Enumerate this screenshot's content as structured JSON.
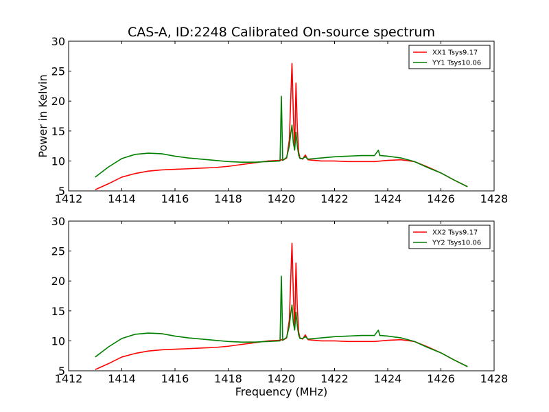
{
  "figure": {
    "title": "CAS-A, ID:2248 Calibrated On-source spectrum",
    "xlabel": "Frequency (MHz)",
    "ylabel": "Power in Kelvin"
  },
  "chart_data": [
    {
      "type": "line",
      "title": "CAS-A, ID:2248 Calibrated On-source spectrum",
      "xlabel": "",
      "ylabel": "Power in Kelvin",
      "xlim": [
        1412,
        1428
      ],
      "ylim": [
        5,
        30
      ],
      "xticks": [
        1412,
        1414,
        1416,
        1418,
        1420,
        1422,
        1424,
        1426,
        1428
      ],
      "yticks": [
        5,
        10,
        15,
        20,
        25,
        30
      ],
      "grid": false,
      "legend": "top-right",
      "series": [
        {
          "name": "XX1 Tsys9.17",
          "color": "#ff0000",
          "x": [
            1413.0,
            1413.5,
            1414.0,
            1414.5,
            1415.0,
            1415.5,
            1416.0,
            1416.5,
            1417.0,
            1417.5,
            1418.0,
            1418.5,
            1419.0,
            1419.5,
            1419.95,
            1420.0,
            1420.05,
            1420.2,
            1420.3,
            1420.35,
            1420.4,
            1420.45,
            1420.5,
            1420.55,
            1420.6,
            1420.65,
            1420.7,
            1420.8,
            1420.9,
            1421.0,
            1421.5,
            1422.0,
            1422.5,
            1423.0,
            1423.5,
            1424.0,
            1424.5,
            1425.0,
            1425.5,
            1426.0,
            1426.5,
            1427.0
          ],
          "y": [
            5.2,
            6.2,
            7.3,
            7.9,
            8.3,
            8.5,
            8.6,
            8.7,
            8.8,
            8.9,
            9.1,
            9.4,
            9.7,
            10.0,
            10.1,
            10.2,
            10.1,
            10.5,
            13.5,
            20.0,
            26.3,
            18.0,
            12.0,
            23.0,
            15.5,
            11.5,
            10.5,
            10.3,
            11.0,
            10.2,
            10.0,
            10.0,
            9.9,
            9.9,
            9.9,
            10.1,
            10.2,
            9.9,
            9.0,
            8.0,
            6.8,
            5.7
          ]
        },
        {
          "name": "YY1 Tsys10.06",
          "color": "#008000",
          "x": [
            1413.0,
            1413.5,
            1414.0,
            1414.5,
            1415.0,
            1415.5,
            1416.0,
            1416.5,
            1417.0,
            1417.5,
            1418.0,
            1418.5,
            1419.0,
            1419.5,
            1419.95,
            1420.0,
            1420.05,
            1420.2,
            1420.3,
            1420.35,
            1420.4,
            1420.45,
            1420.5,
            1420.55,
            1420.6,
            1420.65,
            1420.7,
            1420.8,
            1420.9,
            1421.0,
            1421.5,
            1422.0,
            1422.5,
            1423.0,
            1423.5,
            1423.65,
            1423.7,
            1423.75,
            1424.0,
            1424.5,
            1425.0,
            1425.5,
            1426.0,
            1426.5,
            1427.0
          ],
          "y": [
            7.3,
            9.0,
            10.4,
            11.1,
            11.3,
            11.2,
            10.8,
            10.5,
            10.3,
            10.1,
            9.9,
            9.8,
            9.8,
            9.9,
            10.0,
            20.8,
            10.1,
            10.6,
            12.5,
            14.5,
            16.0,
            13.0,
            11.8,
            14.8,
            12.5,
            11.0,
            10.4,
            10.4,
            10.7,
            10.3,
            10.5,
            10.7,
            10.8,
            10.9,
            10.9,
            11.8,
            10.9,
            10.9,
            10.8,
            10.5,
            9.9,
            8.9,
            8.0,
            6.8,
            5.7
          ]
        }
      ]
    },
    {
      "type": "line",
      "title": "",
      "xlabel": "Frequency (MHz)",
      "ylabel": "",
      "xlim": [
        1412,
        1428
      ],
      "ylim": [
        5,
        30
      ],
      "xticks": [
        1412,
        1414,
        1416,
        1418,
        1420,
        1422,
        1424,
        1426,
        1428
      ],
      "yticks": [
        5,
        10,
        15,
        20,
        25,
        30
      ],
      "grid": false,
      "legend": "top-right",
      "series": [
        {
          "name": "XX2 Tsys9.17",
          "color": "#ff0000",
          "x": [
            1413.0,
            1413.5,
            1414.0,
            1414.5,
            1415.0,
            1415.5,
            1416.0,
            1416.5,
            1417.0,
            1417.5,
            1418.0,
            1418.5,
            1419.0,
            1419.5,
            1419.95,
            1420.0,
            1420.05,
            1420.2,
            1420.3,
            1420.35,
            1420.4,
            1420.45,
            1420.5,
            1420.55,
            1420.6,
            1420.65,
            1420.7,
            1420.8,
            1420.9,
            1421.0,
            1421.5,
            1422.0,
            1422.5,
            1423.0,
            1423.5,
            1424.0,
            1424.5,
            1425.0,
            1425.5,
            1426.0,
            1426.5,
            1427.0
          ],
          "y": [
            5.2,
            6.2,
            7.3,
            7.9,
            8.3,
            8.5,
            8.6,
            8.7,
            8.8,
            8.9,
            9.1,
            9.4,
            9.7,
            10.0,
            10.1,
            10.2,
            10.1,
            10.5,
            13.5,
            20.0,
            26.3,
            18.0,
            12.0,
            23.0,
            15.5,
            11.5,
            10.5,
            10.3,
            11.0,
            10.2,
            10.0,
            10.0,
            9.9,
            9.9,
            9.9,
            10.1,
            10.2,
            9.9,
            9.0,
            8.0,
            6.8,
            5.7
          ]
        },
        {
          "name": "YY2 Tsys10.06",
          "color": "#008000",
          "x": [
            1413.0,
            1413.5,
            1414.0,
            1414.5,
            1415.0,
            1415.5,
            1416.0,
            1416.5,
            1417.0,
            1417.5,
            1418.0,
            1418.5,
            1419.0,
            1419.5,
            1419.95,
            1420.0,
            1420.05,
            1420.2,
            1420.3,
            1420.35,
            1420.4,
            1420.45,
            1420.5,
            1420.55,
            1420.6,
            1420.65,
            1420.7,
            1420.8,
            1420.9,
            1421.0,
            1421.5,
            1422.0,
            1422.5,
            1423.0,
            1423.5,
            1423.65,
            1423.7,
            1423.75,
            1424.0,
            1424.5,
            1425.0,
            1425.5,
            1426.0,
            1426.5,
            1427.0
          ],
          "y": [
            7.3,
            9.0,
            10.4,
            11.1,
            11.3,
            11.2,
            10.8,
            10.5,
            10.3,
            10.1,
            9.9,
            9.8,
            9.8,
            9.9,
            10.0,
            20.8,
            10.1,
            10.6,
            12.5,
            14.5,
            16.0,
            13.0,
            11.8,
            14.8,
            12.5,
            11.0,
            10.4,
            10.4,
            10.7,
            10.3,
            10.5,
            10.7,
            10.8,
            10.9,
            10.9,
            11.8,
            10.9,
            10.9,
            10.8,
            10.5,
            9.9,
            8.9,
            8.0,
            6.8,
            5.7
          ]
        }
      ]
    }
  ]
}
